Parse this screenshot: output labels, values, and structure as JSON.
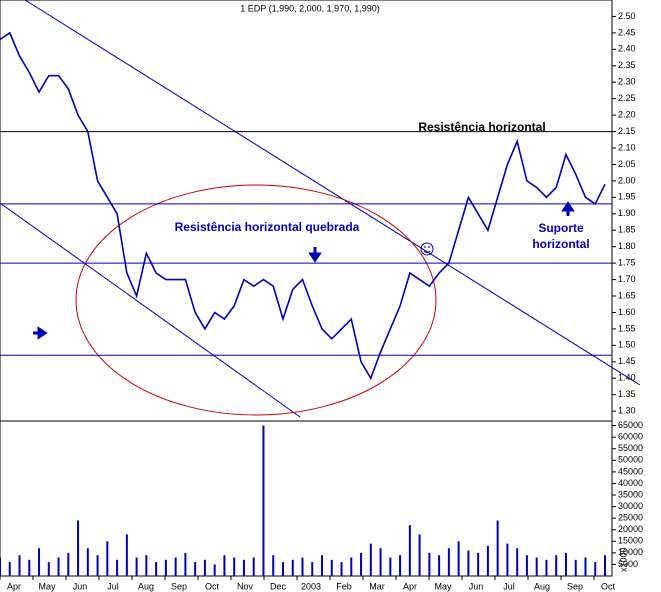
{
  "chart_data": [
    {
      "type": "line",
      "title": "1 EDP (1,990, 2,000, 1,970, 1,990)",
      "ylim": [
        1.27,
        2.55
      ],
      "yticks": [
        {
          "value": 2.5,
          "label": "2.50"
        },
        2.45,
        {
          "value": 2.4,
          "label": "2.40"
        },
        2.35,
        {
          "value": 2.3,
          "label": "2.30"
        },
        2.25,
        {
          "value": 2.2,
          "label": "2.20"
        },
        2.15,
        {
          "value": 2.1,
          "label": "2.10"
        },
        2.05,
        {
          "value": 2.0,
          "label": "2.00"
        },
        1.95,
        {
          "value": 1.9,
          "label": "1.90"
        },
        1.85,
        {
          "value": 1.8,
          "label": "1.80"
        },
        1.75,
        {
          "value": 1.7,
          "label": "1.70"
        },
        1.65,
        {
          "value": 1.6,
          "label": "1.60"
        },
        1.55,
        {
          "value": 1.5,
          "label": "1.50"
        },
        1.45,
        {
          "value": 1.4,
          "label": "1.40"
        },
        1.35,
        {
          "value": 1.3,
          "label": "1.30"
        }
      ],
      "series": [
        {
          "name": "EDP",
          "color": "#0000c0",
          "values": [
            2.43,
            2.45,
            2.38,
            2.33,
            2.27,
            2.32,
            2.32,
            2.28,
            2.2,
            2.15,
            2.0,
            1.95,
            1.9,
            1.72,
            1.65,
            1.78,
            1.72,
            1.7,
            1.7,
            1.7,
            1.6,
            1.55,
            1.6,
            1.58,
            1.62,
            1.7,
            1.68,
            1.7,
            1.68,
            1.58,
            1.67,
            1.7,
            1.62,
            1.55,
            1.52,
            1.55,
            1.58,
            1.45,
            1.4,
            1.48,
            1.55,
            1.62,
            1.72,
            1.7,
            1.68,
            1.72,
            1.75,
            1.85,
            1.95,
            1.9,
            1.85,
            1.95,
            2.05,
            2.12,
            2.0,
            1.98,
            1.95,
            1.98,
            2.08,
            2.02,
            1.95,
            1.93,
            1.99
          ]
        }
      ],
      "hlines": [
        2.15,
        1.93,
        1.75,
        1.47
      ],
      "hline_colors": [
        "#000000",
        "#0000c0",
        "#0000c0",
        "#0000c0"
      ],
      "annotations": [
        "Resistência horizontal",
        "Resistência horizontal quebrada",
        "Suporte",
        "horizontal"
      ]
    },
    {
      "type": "bar",
      "ylabel": "x1000",
      "ylim": [
        0,
        67000
      ],
      "yticks": [
        65000,
        60000,
        55000,
        50000,
        45000,
        40000,
        35000,
        30000,
        25000,
        20000,
        15000,
        10000,
        5000
      ],
      "color": "#0000c0",
      "values": [
        8000,
        6000,
        9000,
        7000,
        12000,
        6000,
        8000,
        10000,
        24000,
        12000,
        9000,
        15000,
        7000,
        18000,
        8000,
        9000,
        6000,
        7000,
        8000,
        10000,
        6000,
        7000,
        5000,
        9000,
        8000,
        7000,
        8000,
        65000,
        9000,
        6000,
        7000,
        8000,
        6000,
        9000,
        7000,
        6000,
        8000,
        10000,
        14000,
        12000,
        8000,
        9000,
        22000,
        18000,
        10000,
        9000,
        12000,
        15000,
        11000,
        10000,
        13000,
        24000,
        14000,
        12000,
        9000,
        8000,
        7000,
        9000,
        10000,
        7000,
        8000,
        6000,
        9000
      ],
      "x_labels": [
        "Apr",
        "May",
        "Jun",
        "Jul",
        "Aug",
        "Sep",
        "Oct",
        "Nov",
        "Dec",
        "2003",
        "Feb",
        "Mar",
        "Apr",
        "May",
        "Jun",
        "Jul",
        "Aug",
        "Sep",
        "Oct"
      ]
    }
  ]
}
